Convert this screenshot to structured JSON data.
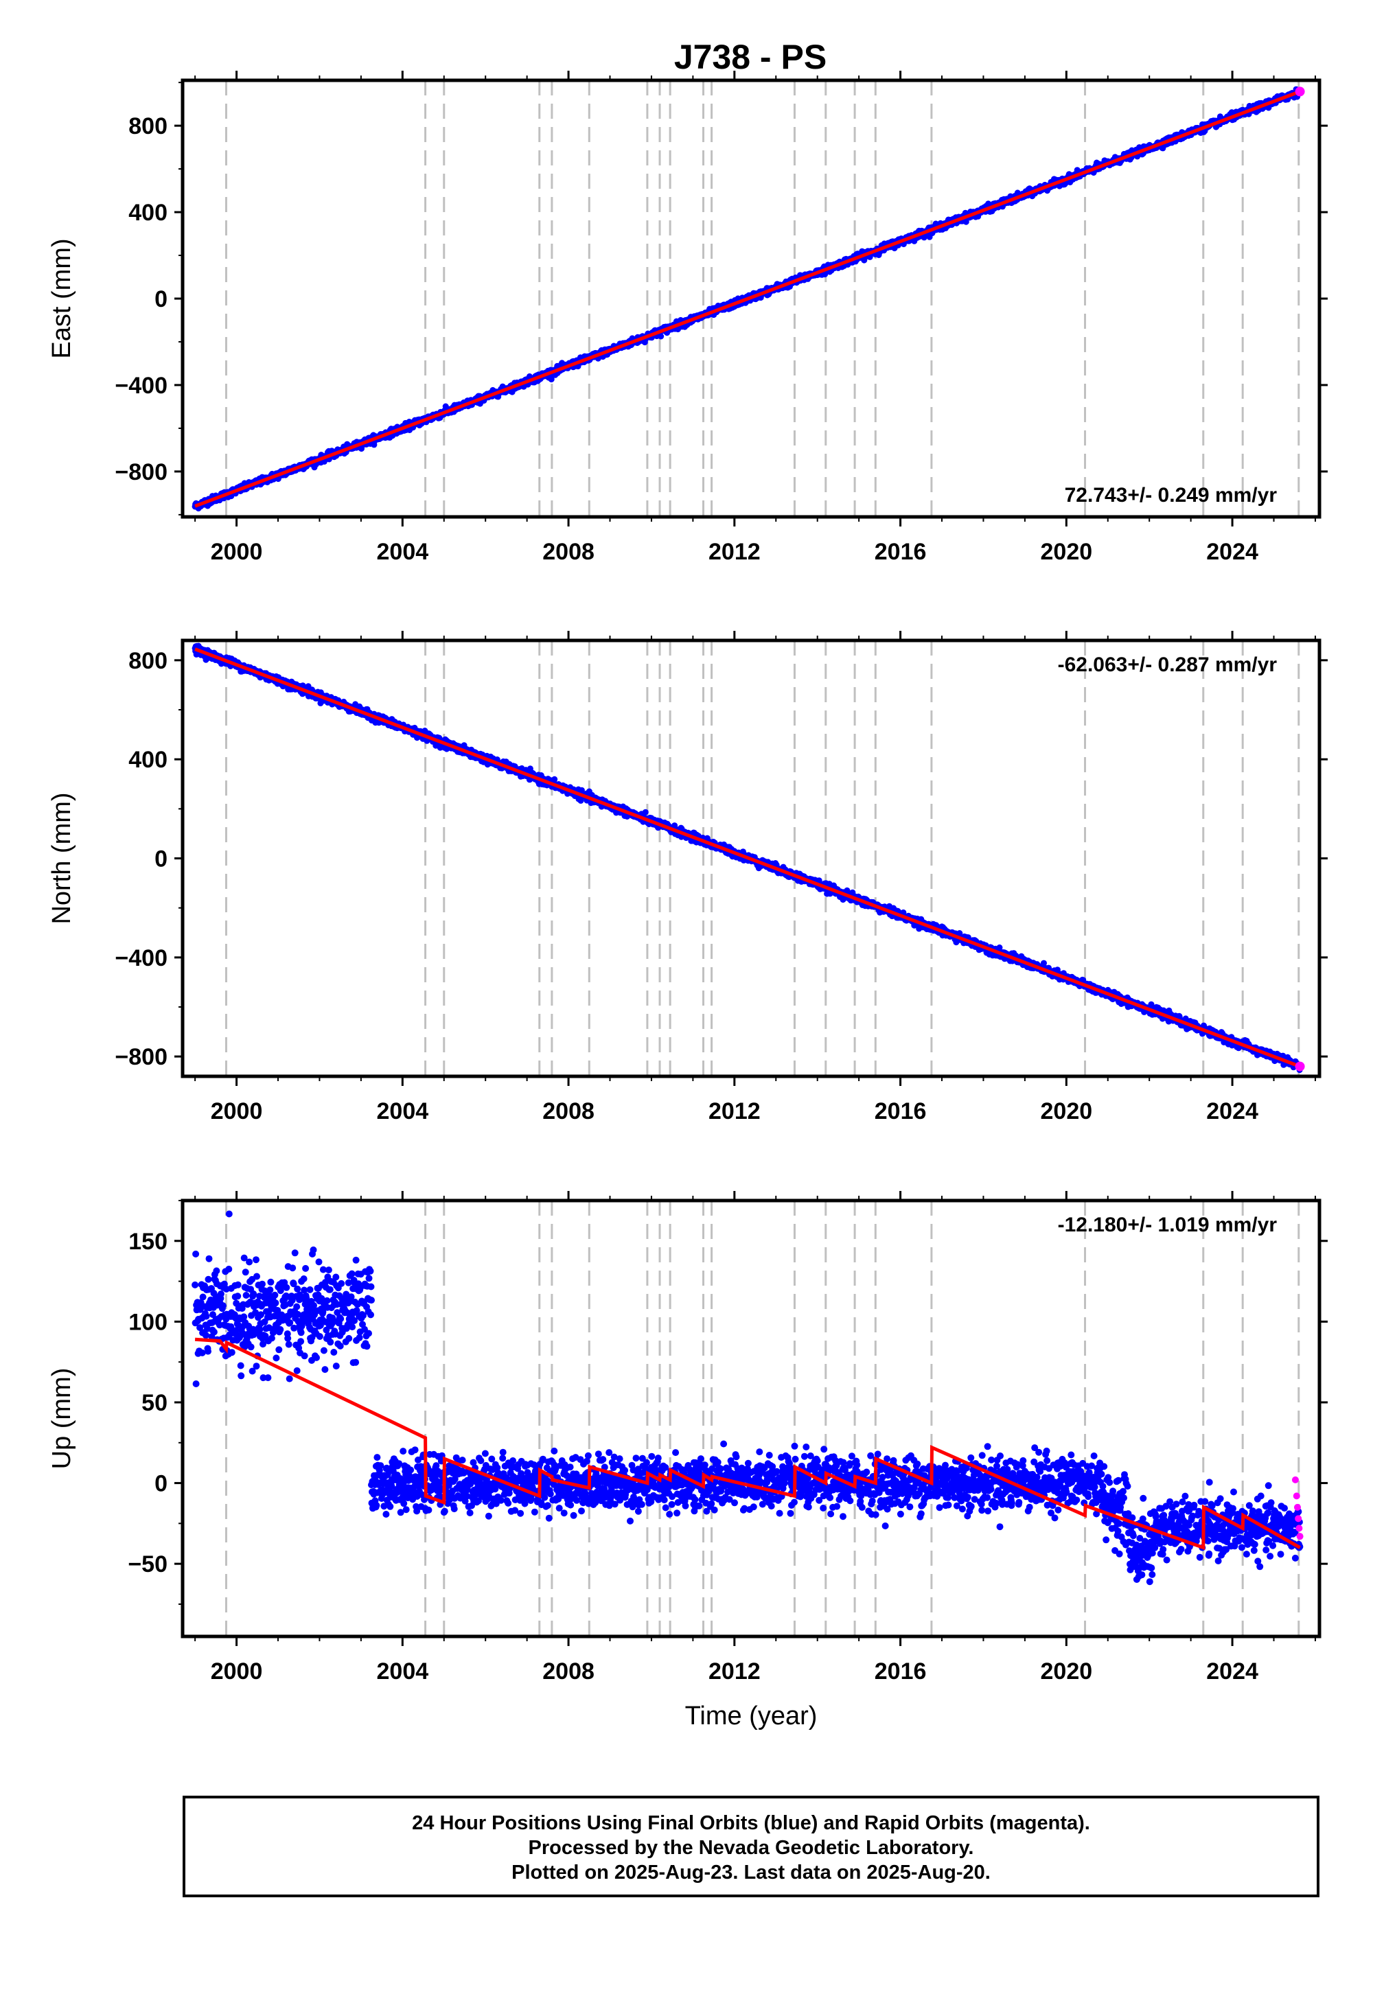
{
  "title": "J738 - PS",
  "chart_data": [
    {
      "type": "scatter",
      "panel": "east",
      "ylabel": "East (mm)",
      "xlabel": "",
      "xlim": [
        1998.7,
        2026.1
      ],
      "ylim": [
        -1010,
        1010
      ],
      "yticks": [
        -800,
        -400,
        0,
        400,
        800
      ],
      "xticks": [
        2000,
        2004,
        2008,
        2012,
        2016,
        2020,
        2024
      ],
      "rate_label": "72.743+/- 0.249 mm/yr",
      "rate_position": "bottom-right",
      "series": [
        {
          "color": "#0000ff",
          "start": [
            1999.0,
            -960
          ],
          "end": [
            2025.63,
            958
          ],
          "noise": 8,
          "gaps": []
        },
        {
          "color": "#ff0000",
          "start": [
            1999.0,
            -960
          ],
          "end": [
            2025.63,
            958
          ]
        },
        {
          "color": "#ff00ff",
          "x_range": [
            2025.5,
            2025.63
          ],
          "values_near_end": 958
        }
      ]
    },
    {
      "type": "scatter",
      "panel": "north",
      "ylabel": "North (mm)",
      "xlabel": "",
      "xlim": [
        1998.7,
        2026.1
      ],
      "ylim": [
        -880,
        880
      ],
      "yticks": [
        -800,
        -400,
        0,
        400,
        800
      ],
      "xticks": [
        2000,
        2004,
        2008,
        2012,
        2016,
        2020,
        2024
      ],
      "rate_label": "-62.063+/- 0.287 mm/yr",
      "rate_position": "top-right",
      "series": [
        {
          "color": "#0000ff",
          "start": [
            1999.0,
            845
          ],
          "end": [
            2025.63,
            -840
          ],
          "noise": 8
        },
        {
          "color": "#ff0000",
          "start": [
            1999.0,
            845
          ],
          "end": [
            2025.63,
            -840
          ]
        },
        {
          "color": "#ff00ff",
          "x_range": [
            2025.5,
            2025.63
          ],
          "values_near_end": -840
        }
      ]
    },
    {
      "type": "scatter",
      "panel": "up",
      "ylabel": "Up (mm)",
      "xlabel": "Time (year)",
      "xlim": [
        1998.7,
        2026.1
      ],
      "ylim": [
        -95,
        175
      ],
      "yticks": [
        -50,
        0,
        50,
        100,
        150
      ],
      "xticks": [
        2000,
        2004,
        2008,
        2012,
        2016,
        2020,
        2024
      ],
      "rate_label": "-12.180+/- 1.019 mm/yr",
      "rate_position": "top-right",
      "final_segments": [
        {
          "x_range": [
            1999.0,
            2003.25
          ],
          "mean": 105,
          "noise": 18
        },
        {
          "x_range": [
            2003.25,
            2020.9
          ],
          "mean": 0,
          "noise": 10
        },
        {
          "x_range": [
            2020.9,
            2021.5
          ],
          "mean": -15,
          "noise": 12
        },
        {
          "x_range": [
            2021.5,
            2022.1
          ],
          "mean": -40,
          "noise": 14
        },
        {
          "x_range": [
            2022.1,
            2025.63
          ],
          "mean": -28,
          "noise": 10
        }
      ],
      "rapid_points": [
        [
          2025.52,
          2
        ],
        [
          2025.55,
          -8
        ],
        [
          2025.57,
          -15
        ],
        [
          2025.59,
          -22
        ],
        [
          2025.61,
          -28
        ],
        [
          2025.63,
          -33
        ]
      ],
      "model": [
        [
          1999.0,
          89
        ],
        [
          1999.6,
          88
        ],
        [
          1999.75,
          83
        ],
        [
          1999.76,
          87
        ],
        [
          2004.55,
          28
        ],
        [
          2004.56,
          -8
        ],
        [
          2005.0,
          -12
        ],
        [
          2005.01,
          15
        ],
        [
          2007.3,
          -8
        ],
        [
          2007.31,
          8
        ],
        [
          2007.6,
          4
        ],
        [
          2007.61,
          2
        ],
        [
          2008.5,
          -3
        ],
        [
          2008.51,
          10
        ],
        [
          2009.9,
          0
        ],
        [
          2009.91,
          6
        ],
        [
          2010.2,
          2
        ],
        [
          2010.21,
          5
        ],
        [
          2010.45,
          2
        ],
        [
          2010.46,
          8
        ],
        [
          2011.25,
          -2
        ],
        [
          2011.26,
          5
        ],
        [
          2011.45,
          2
        ],
        [
          2011.46,
          4
        ],
        [
          2013.45,
          -8
        ],
        [
          2013.46,
          10
        ],
        [
          2014.2,
          0
        ],
        [
          2014.21,
          6
        ],
        [
          2014.9,
          -2
        ],
        [
          2014.91,
          4
        ],
        [
          2015.4,
          0
        ],
        [
          2015.41,
          15
        ],
        [
          2016.75,
          0
        ],
        [
          2016.76,
          22
        ],
        [
          2020.45,
          -20
        ],
        [
          2020.46,
          -14
        ],
        [
          2023.3,
          -40
        ],
        [
          2023.31,
          -15
        ],
        [
          2024.25,
          -28
        ],
        [
          2024.26,
          -20
        ],
        [
          2025.63,
          -40
        ]
      ]
    }
  ],
  "event_lines_x": [
    1999.75,
    2004.55,
    2005.0,
    2007.3,
    2007.6,
    2008.5,
    2009.9,
    2010.2,
    2010.45,
    2011.25,
    2011.45,
    2013.45,
    2014.2,
    2014.9,
    2015.4,
    2016.75,
    2020.45,
    2023.3,
    2024.25,
    2025.6
  ],
  "footer": {
    "line1": "24 Hour Positions Using Final Orbits (blue) and Rapid Orbits (magenta).",
    "line2": "Processed by the Nevada Geodetic Laboratory.",
    "line3": "Plotted on 2025-Aug-23. Last data on 2025-Aug-20."
  }
}
